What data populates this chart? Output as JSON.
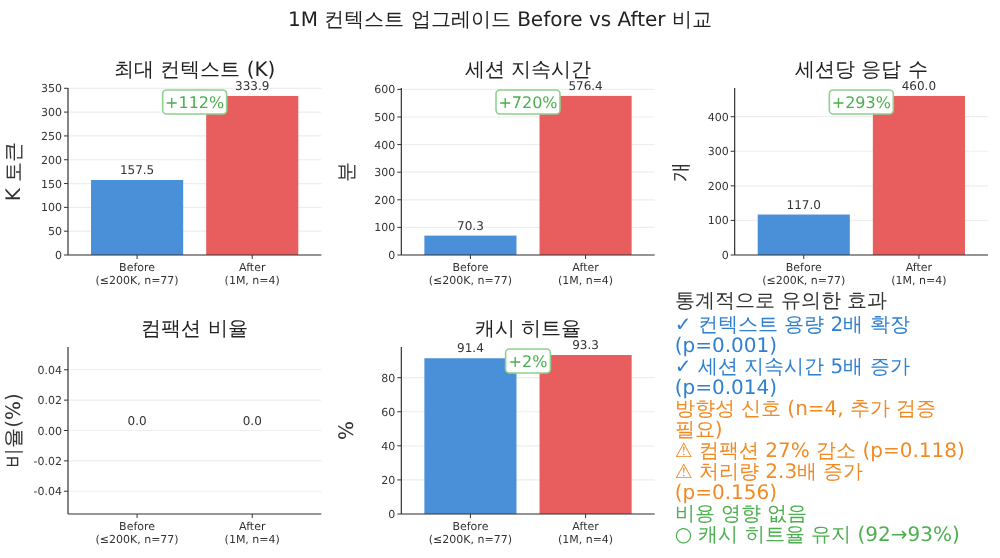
{
  "chart_data": [
    {
      "type": "bar",
      "title": "최대 컨텍스트 (K)",
      "ylabel": "K 토큰",
      "categories": [
        "Before\n(≤200K, n=77)",
        "After\n(1M, n=4)"
      ],
      "values": [
        157.5,
        333.9
      ],
      "colors": [
        "#4a90d9",
        "#e85d5d"
      ],
      "ylim": [
        0,
        350.6
      ],
      "yticks": [
        0,
        50,
        100,
        150,
        200,
        250,
        300,
        350
      ],
      "grid": "y",
      "data_labels": true,
      "annotations": [
        "+112%"
      ]
    },
    {
      "type": "bar",
      "subtitle": "1M 컨텍스트 업그레이드 Before vs After 비교",
      "title": "세션 지속시간",
      "ylabel": "분",
      "categories": [
        "Before\n(≤200K, n=77)",
        "After\n(1M, n=4)"
      ],
      "values": [
        70.3,
        576.4
      ],
      "colors": [
        "#4a90d9",
        "#e85d5d"
      ],
      "ylim": [
        0,
        605
      ],
      "yticks": [
        0,
        100,
        200,
        300,
        400,
        500,
        600
      ],
      "grid": "y",
      "data_labels": true,
      "annotations": [
        "+720%"
      ]
    },
    {
      "type": "bar",
      "title": "세션당 응답 수",
      "ylabel": "개",
      "categories": [
        "Before\n(≤200K, n=77)",
        "After\n(1M, n=4)"
      ],
      "values": [
        117.0,
        460.0
      ],
      "value_labels": [
        "117.0",
        "460.0"
      ],
      "colors": [
        "#4a90d9",
        "#e85d5d"
      ],
      "ylim": [
        0,
        483
      ],
      "yticks": [
        0,
        100,
        200,
        300,
        400
      ],
      "grid": "y",
      "annotations": [
        "+293%"
      ]
    },
    {
      "type": "bar",
      "title": "컴팩션 비율",
      "ylabel": "비율(%)",
      "categories": [
        "Before\n(≤200K, n=77)",
        "After\n(1M, n=4)"
      ],
      "values": [
        0,
        0
      ],
      "value_labels": [
        "0.0",
        "0.0"
      ],
      "colors": [
        "#4a90d9",
        "#e85d5d"
      ],
      "ylim": [
        -0.055,
        0.055
      ],
      "yticks": [
        {
          "value": -0.04,
          "label": "-0.04"
        },
        {
          "value": -0.02,
          "label": "-0.02"
        },
        {
          "value": 0,
          "label": "0.00"
        },
        {
          "value": 0.02,
          "label": "0.02"
        },
        {
          "value": 0.04,
          "label": "0.04"
        }
      ],
      "grid": "y"
    },
    {
      "type": "bar",
      "title": "캐시 히트율",
      "ylabel": "%",
      "categories": [
        "Before\n(≤200K, n=77)",
        "After\n(1M, n=4)"
      ],
      "values": [
        91.4,
        93.3
      ],
      "colors": [
        "#4a90d9",
        "#e85d5d"
      ],
      "ylim": [
        0,
        98
      ],
      "yticks": [
        0,
        20,
        40,
        60,
        80
      ],
      "grid": "y",
      "data_labels": true,
      "annotations": [
        "+2%"
      ]
    },
    {
      "type": "other",
      "title": "통계적으로 유의한 효과",
      "annotations": [
        "✓ 컨텍스트 용량 2배 확장 (p=0.001)",
        "✓ 세션 지속시간 5배 증가 (p=0.014)",
        "방향성 신호 (n=4, 추가 검증 필요)",
        "⚠ 컴팩션 27% 감소 (p=0.118)",
        "⚠ 처리량 2.3배 증가 (p=0.156)",
        "비용 영향 없음",
        "○ 캐시 히트율 유지 (92→93%)"
      ],
      "colors": [
        "#2f80d0",
        "#2f80d0",
        "#f08a24",
        "#f08a24",
        "#f08a24",
        "#4caf50",
        "#4caf50"
      ]
    }
  ]
}
